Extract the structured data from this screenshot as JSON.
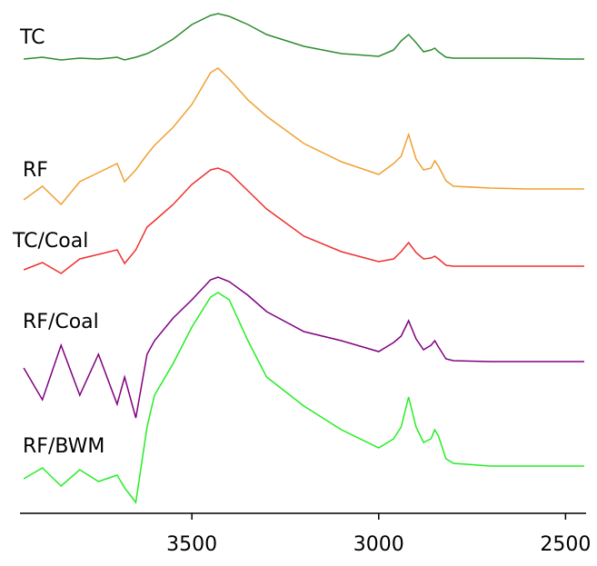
{
  "chart_data": {
    "type": "line",
    "x": [
      3950,
      3900,
      3850,
      3800,
      3750,
      3700,
      3680,
      3650,
      3620,
      3600,
      3550,
      3500,
      3450,
      3430,
      3400,
      3350,
      3300,
      3200,
      3100,
      3000,
      2960,
      2940,
      2920,
      2900,
      2880,
      2860,
      2850,
      2840,
      2820,
      2800,
      2700,
      2600,
      2500,
      2450
    ],
    "series": [
      {
        "name": "TC",
        "color": "#2e8b2e",
        "values": [
          500,
          502,
          499,
          501,
          500,
          502,
          499,
          502,
          506,
          510,
          522,
          538,
          548,
          550,
          547,
          538,
          527,
          514,
          506,
          503,
          510,
          520,
          527,
          518,
          508,
          510,
          512,
          508,
          502,
          501,
          501,
          501,
          500,
          500
        ]
      },
      {
        "name": "RF",
        "color": "#f0a030",
        "values": [
          345,
          360,
          340,
          365,
          375,
          385,
          365,
          378,
          395,
          405,
          425,
          450,
          485,
          490,
          478,
          455,
          437,
          407,
          387,
          373,
          385,
          393,
          417,
          390,
          378,
          380,
          388,
          382,
          366,
          360,
          358,
          357,
          357,
          357
        ]
      },
      {
        "name": "TC/Coal",
        "color": "#f03030",
        "values": [
          268,
          276,
          264,
          280,
          285,
          290,
          275,
          290,
          315,
          322,
          340,
          362,
          378,
          380,
          375,
          355,
          335,
          305,
          288,
          277,
          280,
          288,
          298,
          287,
          280,
          281,
          283,
          280,
          273,
          272,
          272,
          272,
          272,
          272
        ]
      },
      {
        "name": "RF/Coal",
        "color": "#800080",
        "values": [
          160,
          125,
          185,
          130,
          175,
          120,
          150,
          105,
          175,
          190,
          215,
          235,
          257,
          260,
          255,
          240,
          222,
          200,
          190,
          178,
          188,
          195,
          212,
          192,
          180,
          185,
          190,
          183,
          170,
          168,
          167,
          167,
          167,
          167
        ]
      },
      {
        "name": "RF/BWM",
        "color": "#22ee22",
        "values": [
          38,
          50,
          30,
          48,
          35,
          42,
          28,
          12,
          95,
          130,
          165,
          205,
          238,
          243,
          235,
          190,
          150,
          118,
          92,
          72,
          82,
          95,
          128,
          95,
          78,
          82,
          92,
          85,
          60,
          55,
          52,
          52,
          52,
          52
        ]
      }
    ],
    "xlim": [
      3960,
      2445
    ],
    "xticks": [
      3500,
      3000,
      2500
    ],
    "ylim": [
      0,
      560
    ]
  }
}
